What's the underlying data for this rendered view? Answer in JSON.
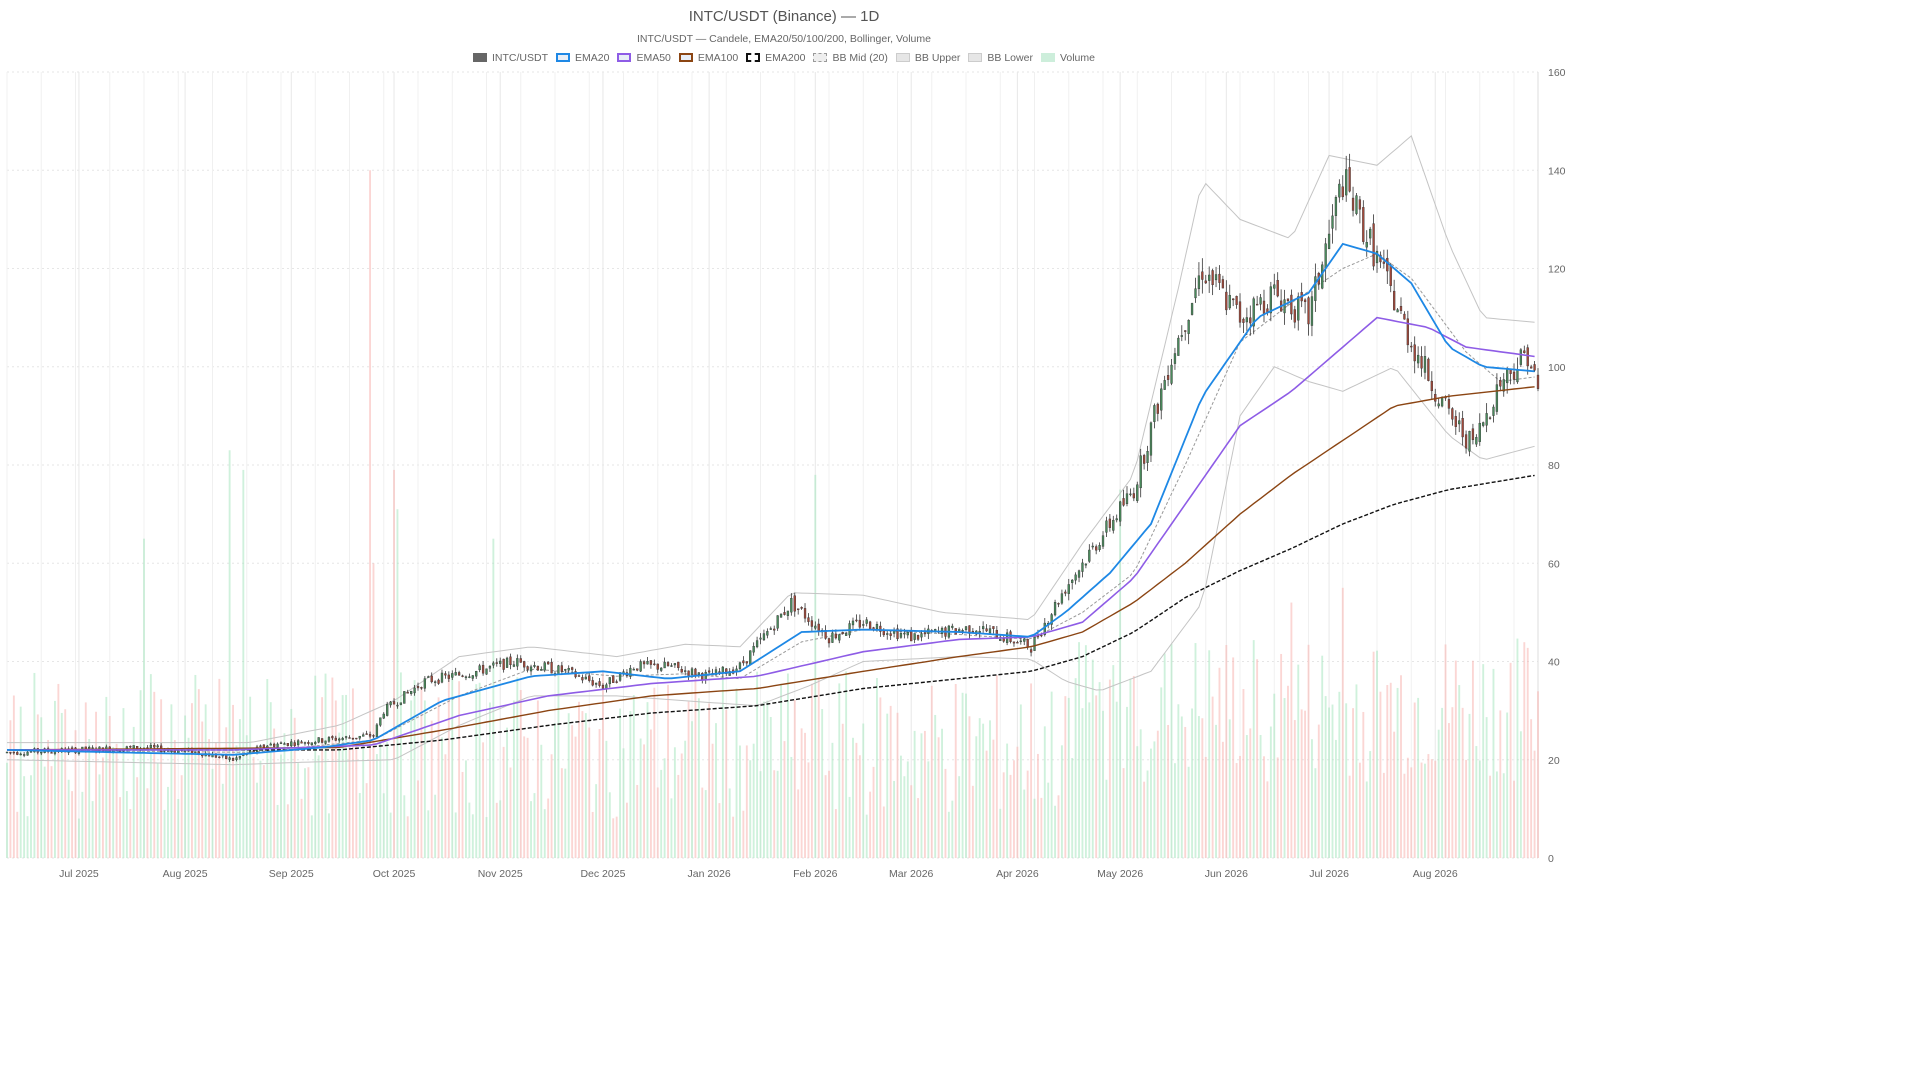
{
  "chart_data": {
    "type": "candlestick",
    "title": "INTC/USDT (Binance) — 1D",
    "subtitle": "INTC/USDT — Candele, EMA20/50/100/200, Bollinger, Volume",
    "legend": [
      {
        "name": "INTC/USDT",
        "color": "#666666",
        "style": "fill"
      },
      {
        "name": "EMA20",
        "color": "#1e88e5",
        "style": "line"
      },
      {
        "name": "EMA50",
        "color": "#8e5ce6",
        "style": "line"
      },
      {
        "name": "EMA100",
        "color": "#8b4513",
        "style": "line"
      },
      {
        "name": "EMA200",
        "color": "#111111",
        "style": "dashed"
      },
      {
        "name": "BB Mid (20)",
        "color": "#999999",
        "style": "dotted"
      },
      {
        "name": "BB Upper",
        "color": "#bbbbbb",
        "style": "line"
      },
      {
        "name": "BB Lower",
        "color": "#bbbbbb",
        "style": "line"
      },
      {
        "name": "Volume",
        "color": "#a8e6c0",
        "style": "fill"
      }
    ],
    "legend_position": "top-center",
    "x_ticks": [
      "Jul 2025",
      "Aug 2025",
      "Sep 2025",
      "Oct 2025",
      "Nov 2025",
      "Dec 2025",
      "Jan 2026",
      "Feb 2026",
      "Mar 2026",
      "Apr 2026",
      "May 2026",
      "Jun 2026",
      "Jul 2026",
      "Aug 2026"
    ],
    "x_range": [
      "2025-06-10",
      "2026-08-31"
    ],
    "y_ticks": [
      0,
      20,
      40,
      60,
      80,
      100,
      120,
      140,
      160
    ],
    "ylim": [
      0,
      160
    ],
    "y_axis_side": "right",
    "grid": true,
    "colors": {
      "up": "#4a8a5c",
      "down": "#a0483a",
      "vol_up": "#a8e6c0",
      "vol_down": "#f8b4b0"
    },
    "price_anchors": [
      [
        "2025-06-10",
        21.5
      ],
      [
        "2025-07-01",
        22
      ],
      [
        "2025-07-20",
        22.5
      ],
      [
        "2025-08-05",
        21.5
      ],
      [
        "2025-08-15",
        20
      ],
      [
        "2025-08-25",
        23
      ],
      [
        "2025-09-10",
        24
      ],
      [
        "2025-09-25",
        25
      ],
      [
        "2025-09-28",
        30
      ],
      [
        "2025-10-10",
        36
      ],
      [
        "2025-10-25",
        38
      ],
      [
        "2025-11-05",
        40
      ],
      [
        "2025-11-20",
        38
      ],
      [
        "2025-12-01",
        35
      ],
      [
        "2025-12-10",
        39
      ],
      [
        "2025-12-20",
        39
      ],
      [
        "2026-01-01",
        37
      ],
      [
        "2026-01-10",
        39
      ],
      [
        "2026-01-25",
        52
      ],
      [
        "2026-02-05",
        45
      ],
      [
        "2026-02-15",
        48
      ],
      [
        "2026-03-01",
        45
      ],
      [
        "2026-03-20",
        47
      ],
      [
        "2026-04-05",
        43
      ],
      [
        "2026-04-15",
        55
      ],
      [
        "2026-04-25",
        65
      ],
      [
        "2026-05-05",
        75
      ],
      [
        "2026-05-15",
        100
      ],
      [
        "2026-05-25",
        120
      ],
      [
        "2026-06-05",
        110
      ],
      [
        "2026-06-15",
        115
      ],
      [
        "2026-06-25",
        110
      ],
      [
        "2026-07-05",
        138
      ],
      [
        "2026-07-15",
        122
      ],
      [
        "2026-07-25",
        105
      ],
      [
        "2026-08-05",
        90
      ],
      [
        "2026-08-12",
        84
      ],
      [
        "2026-08-20",
        97
      ],
      [
        "2026-08-28",
        103
      ],
      [
        "2026-08-31",
        95
      ]
    ],
    "ema20": [
      [
        "2025-06-10",
        22
      ],
      [
        "2025-08-15",
        21
      ],
      [
        "2025-09-10",
        22.5
      ],
      [
        "2025-09-25",
        24
      ],
      [
        "2025-10-15",
        32
      ],
      [
        "2025-11-10",
        37
      ],
      [
        "2025-12-01",
        38
      ],
      [
        "2025-12-20",
        36.5
      ],
      [
        "2026-01-10",
        38
      ],
      [
        "2026-01-28",
        46
      ],
      [
        "2026-02-15",
        46.5
      ],
      [
        "2026-03-15",
        46
      ],
      [
        "2026-04-05",
        45
      ],
      [
        "2026-04-15",
        50
      ],
      [
        "2026-04-28",
        58
      ],
      [
        "2026-05-10",
        68
      ],
      [
        "2026-05-25",
        94
      ],
      [
        "2026-06-10",
        110
      ],
      [
        "2026-06-25",
        115
      ],
      [
        "2026-07-05",
        125
      ],
      [
        "2026-07-15",
        123
      ],
      [
        "2026-07-25",
        117
      ],
      [
        "2026-08-05",
        104
      ],
      [
        "2026-08-15",
        100
      ],
      [
        "2026-08-31",
        99
      ]
    ],
    "ema50": [
      [
        "2025-06-10",
        22
      ],
      [
        "2025-08-15",
        22
      ],
      [
        "2025-09-25",
        23
      ],
      [
        "2025-10-20",
        29
      ],
      [
        "2025-11-15",
        33
      ],
      [
        "2025-12-15",
        35.5
      ],
      [
        "2026-01-15",
        37
      ],
      [
        "2026-02-15",
        42
      ],
      [
        "2026-03-15",
        44.5
      ],
      [
        "2026-04-05",
        45
      ],
      [
        "2026-04-20",
        48
      ],
      [
        "2026-05-05",
        57
      ],
      [
        "2026-05-20",
        72
      ],
      [
        "2026-06-05",
        88
      ],
      [
        "2026-06-20",
        95
      ],
      [
        "2026-07-05",
        104
      ],
      [
        "2026-07-15",
        110
      ],
      [
        "2026-07-30",
        108
      ],
      [
        "2026-08-10",
        104
      ],
      [
        "2026-08-31",
        102
      ]
    ],
    "ema100": [
      [
        "2025-06-10",
        22
      ],
      [
        "2025-09-15",
        22.5
      ],
      [
        "2025-10-15",
        26
      ],
      [
        "2025-11-15",
        30
      ],
      [
        "2025-12-15",
        33
      ],
      [
        "2026-01-15",
        34.5
      ],
      [
        "2026-02-15",
        38
      ],
      [
        "2026-03-15",
        41
      ],
      [
        "2026-04-05",
        43
      ],
      [
        "2026-04-20",
        46
      ],
      [
        "2026-05-05",
        52
      ],
      [
        "2026-05-20",
        60
      ],
      [
        "2026-06-05",
        70
      ],
      [
        "2026-06-20",
        78
      ],
      [
        "2026-07-05",
        85
      ],
      [
        "2026-07-20",
        92
      ],
      [
        "2026-08-05",
        94
      ],
      [
        "2026-08-31",
        96
      ]
    ],
    "ema200": [
      [
        "2025-06-10",
        22
      ],
      [
        "2025-09-15",
        22
      ],
      [
        "2025-10-15",
        24
      ],
      [
        "2025-11-15",
        27
      ],
      [
        "2025-12-15",
        29.5
      ],
      [
        "2026-01-15",
        31
      ],
      [
        "2026-02-15",
        34.5
      ],
      [
        "2026-03-15",
        36.5
      ],
      [
        "2026-04-05",
        38
      ],
      [
        "2026-04-20",
        41
      ],
      [
        "2026-05-05",
        46
      ],
      [
        "2026-05-20",
        53
      ],
      [
        "2026-06-05",
        58.5
      ],
      [
        "2026-06-20",
        63
      ],
      [
        "2026-07-05",
        68
      ],
      [
        "2026-07-20",
        72
      ],
      [
        "2026-08-05",
        75
      ],
      [
        "2026-08-31",
        78
      ]
    ],
    "bb_mid": [
      [
        "2025-06-10",
        22
      ],
      [
        "2025-08-20",
        21.5
      ],
      [
        "2025-09-25",
        24
      ],
      [
        "2025-10-20",
        33
      ],
      [
        "2025-11-10",
        38.5
      ],
      [
        "2025-12-05",
        37
      ],
      [
        "2025-12-25",
        37.5
      ],
      [
        "2026-01-10",
        36.5
      ],
      [
        "2026-01-28",
        44
      ],
      [
        "2026-02-15",
        46.5
      ],
      [
        "2026-03-15",
        45.5
      ],
      [
        "2026-04-05",
        44.5
      ],
      [
        "2026-04-20",
        50
      ],
      [
        "2026-05-05",
        58
      ],
      [
        "2026-05-20",
        80
      ],
      [
        "2026-06-05",
        105
      ],
      [
        "2026-06-20",
        113
      ],
      [
        "2026-07-05",
        120
      ],
      [
        "2026-07-15",
        123
      ],
      [
        "2026-07-25",
        118
      ],
      [
        "2026-08-10",
        103
      ],
      [
        "2026-08-20",
        97
      ],
      [
        "2026-08-31",
        98
      ]
    ],
    "bb_upper": [
      [
        "2025-06-10",
        23.5
      ],
      [
        "2025-08-20",
        23.5
      ],
      [
        "2025-09-15",
        27
      ],
      [
        "2025-10-01",
        32
      ],
      [
        "2025-10-20",
        41
      ],
      [
        "2025-11-10",
        43
      ],
      [
        "2025-12-05",
        41
      ],
      [
        "2025-12-25",
        43.5
      ],
      [
        "2026-01-10",
        43
      ],
      [
        "2026-01-25",
        54
      ],
      [
        "2026-02-15",
        53.5
      ],
      [
        "2026-03-10",
        50
      ],
      [
        "2026-04-05",
        48.5
      ],
      [
        "2026-04-20",
        64
      ],
      [
        "2026-05-05",
        78
      ],
      [
        "2026-05-18",
        116
      ],
      [
        "2026-05-25",
        138
      ],
      [
        "2026-06-05",
        130
      ],
      [
        "2026-06-20",
        126
      ],
      [
        "2026-07-01",
        143
      ],
      [
        "2026-07-15",
        141
      ],
      [
        "2026-07-25",
        147
      ],
      [
        "2026-08-05",
        125
      ],
      [
        "2026-08-15",
        110
      ],
      [
        "2026-08-31",
        109
      ]
    ],
    "bb_lower": [
      [
        "2025-06-10",
        20
      ],
      [
        "2025-08-15",
        19
      ],
      [
        "2025-09-05",
        19.5
      ],
      [
        "2025-10-01",
        20
      ],
      [
        "2025-10-20",
        27
      ],
      [
        "2025-11-10",
        33
      ],
      [
        "2025-12-05",
        33
      ],
      [
        "2025-12-25",
        32
      ],
      [
        "2026-01-15",
        31
      ],
      [
        "2026-01-30",
        35
      ],
      [
        "2026-02-15",
        40
      ],
      [
        "2026-03-15",
        41
      ],
      [
        "2026-04-05",
        40.5
      ],
      [
        "2026-04-15",
        36
      ],
      [
        "2026-04-25",
        34
      ],
      [
        "2026-05-10",
        38
      ],
      [
        "2026-05-25",
        52
      ],
      [
        "2026-06-05",
        90
      ],
      [
        "2026-06-15",
        100
      ],
      [
        "2026-06-25",
        97
      ],
      [
        "2026-07-05",
        95
      ],
      [
        "2026-07-20",
        100
      ],
      [
        "2026-08-05",
        86
      ],
      [
        "2026-08-15",
        81
      ],
      [
        "2026-08-31",
        84
      ]
    ],
    "volume_note": "Volume bars scaled onto price axis; values in axis units",
    "volume_peaks": [
      [
        "2025-07-20",
        65
      ],
      [
        "2025-08-14",
        83
      ],
      [
        "2025-08-18",
        79
      ],
      [
        "2025-09-24",
        140
      ],
      [
        "2025-09-25",
        60
      ],
      [
        "2025-10-01",
        79
      ],
      [
        "2025-10-02",
        71
      ],
      [
        "2025-10-30",
        65
      ],
      [
        "2026-02-01",
        78
      ],
      [
        "2026-05-01",
        75
      ],
      [
        "2026-06-20",
        52
      ],
      [
        "2026-07-05",
        55
      ]
    ]
  }
}
